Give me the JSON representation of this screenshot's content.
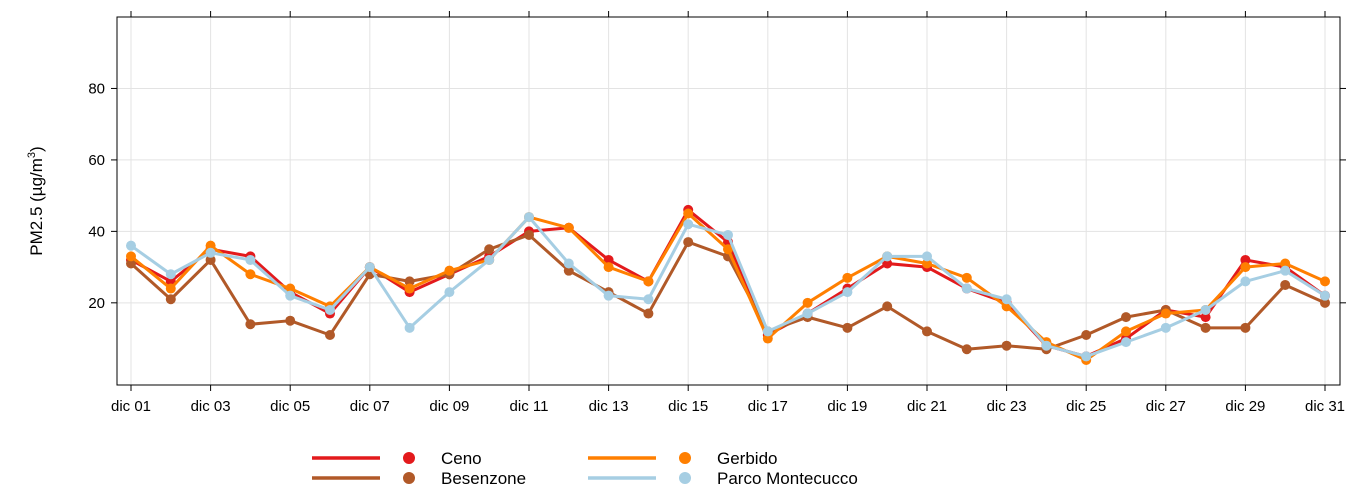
{
  "chart_data": {
    "type": "line",
    "title": "",
    "xlabel": "",
    "ylabel_prefix": "PM2.5 (µg/m",
    "ylabel_sup": "3",
    "ylabel_suffix": ")",
    "ylim": [
      -3,
      100
    ],
    "yticks": [
      20,
      40,
      60,
      80
    ],
    "x": [
      1,
      2,
      3,
      4,
      5,
      6,
      7,
      8,
      9,
      10,
      11,
      12,
      13,
      14,
      15,
      16,
      17,
      18,
      19,
      20,
      21,
      22,
      23,
      24,
      25,
      26,
      27,
      28,
      29,
      30,
      31
    ],
    "xticks": [
      1,
      3,
      5,
      7,
      9,
      11,
      13,
      15,
      17,
      19,
      21,
      23,
      25,
      27,
      29,
      31
    ],
    "xtick_labels": [
      "dic 01",
      "dic 03",
      "dic 05",
      "dic 07",
      "dic 09",
      "dic 11",
      "dic 13",
      "dic 15",
      "dic 17",
      "dic 19",
      "dic 21",
      "dic 23",
      "dic 25",
      "dic 27",
      "dic 29",
      "dic 31"
    ],
    "grid": true,
    "legend_position": "bottom",
    "series": [
      {
        "name": "Ceno",
        "color": "#e31a1c",
        "values": [
          32,
          26,
          35,
          33,
          23,
          17,
          30,
          23,
          28,
          33,
          40,
          41,
          32,
          26,
          46,
          37,
          11,
          17,
          24,
          31,
          30,
          24,
          20,
          8,
          5,
          10,
          18,
          16,
          32,
          30,
          22
        ]
      },
      {
        "name": "Besenzone",
        "color": "#b15928",
        "values": [
          31,
          21,
          32,
          14,
          15,
          11,
          28,
          26,
          28,
          35,
          39,
          29,
          23,
          17,
          37,
          33,
          12,
          16,
          13,
          19,
          12,
          7,
          8,
          7,
          11,
          16,
          18,
          13,
          13,
          25,
          20
        ]
      },
      {
        "name": "Gerbido",
        "color": "#ff7f00",
        "values": [
          33,
          24,
          36,
          28,
          24,
          19,
          30,
          24,
          29,
          32,
          44,
          41,
          30,
          26,
          45,
          35,
          10,
          20,
          27,
          33,
          31,
          27,
          19,
          9,
          4,
          12,
          17,
          18,
          30,
          31,
          26
        ]
      },
      {
        "name": "Parco Montecucco",
        "color": "#a6cee3",
        "values": [
          36,
          28,
          34,
          32,
          22,
          18,
          30,
          13,
          23,
          32,
          44,
          31,
          22,
          21,
          42,
          39,
          12,
          17,
          23,
          33,
          33,
          24,
          21,
          8,
          5,
          9,
          13,
          18,
          26,
          29,
          22
        ]
      }
    ]
  }
}
